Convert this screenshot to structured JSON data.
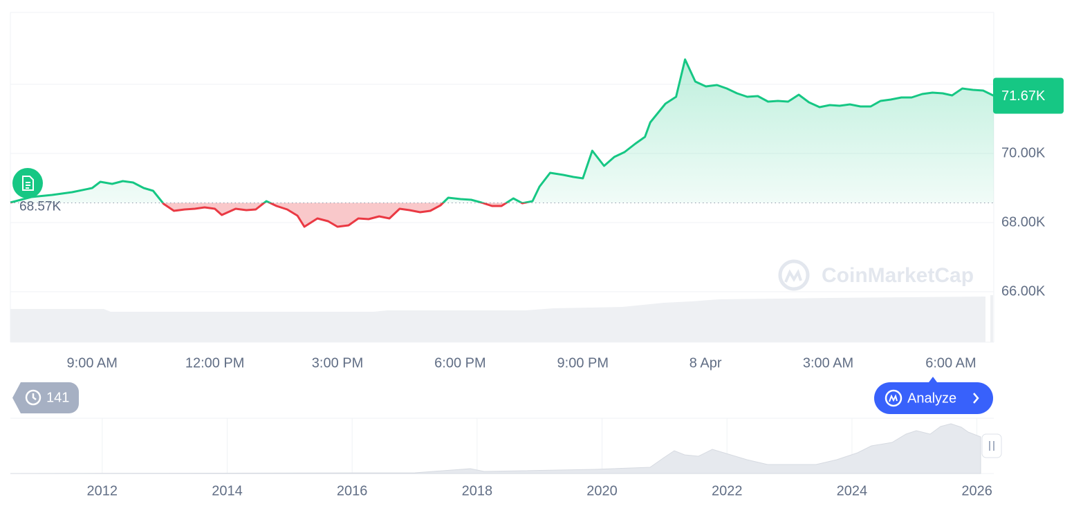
{
  "chart_data": {
    "type": "line",
    "x": [
      7,
      7.51,
      8.02,
      8.51,
      9,
      9.2,
      9.49,
      9.75,
      10,
      10.26,
      10.49,
      10.75,
      11,
      11.26,
      11.51,
      11.75,
      12,
      12.17,
      12.51,
      12.77,
      13,
      13.26,
      13.51,
      13.77,
      14.02,
      14.19,
      14.51,
      14.77,
      15,
      15.27,
      15.51,
      15.76,
      16.02,
      16.27,
      16.52,
      16.76,
      17.02,
      17.27,
      17.52,
      17.71,
      18.01,
      18.27,
      18.52,
      18.78,
      19.01,
      19.3,
      19.52,
      19.77,
      19.94,
      20.2,
      20.52,
      20.77,
      21,
      21.23,
      21.52,
      21.77,
      22.02,
      22.28,
      22.52,
      22.65,
      23.02,
      23.28,
      23.5,
      23.75,
      24.01,
      24.28,
      24.52,
      24.77,
      25.02,
      25.28,
      25.53,
      25.77,
      26.02,
      26.28,
      26.53,
      26.79,
      27.04,
      27.28,
      27.53,
      27.79,
      28.04,
      28.28,
      28.53,
      28.79,
      29.04,
      29.3,
      29.55,
      29.8,
      30.03,
      30.28,
      30.54,
      30.79,
      31.05
    ],
    "values": [
      68580,
      68740,
      68800,
      68880,
      69000,
      69180,
      69120,
      69200,
      69160,
      69000,
      68920,
      68540,
      68340,
      68380,
      68400,
      68440,
      68400,
      68220,
      68400,
      68360,
      68380,
      68620,
      68480,
      68380,
      68200,
      67880,
      68120,
      68040,
      67880,
      67920,
      68120,
      68100,
      68180,
      68120,
      68400,
      68360,
      68300,
      68340,
      68500,
      68720,
      68680,
      68660,
      68580,
      68480,
      68480,
      68700,
      68560,
      68620,
      69040,
      69440,
      69380,
      69320,
      69280,
      70080,
      69640,
      69900,
      70040,
      70280,
      70480,
      70900,
      71440,
      71640,
      72720,
      72080,
      71940,
      71980,
      71880,
      71740,
      71640,
      71660,
      71500,
      71520,
      71500,
      71700,
      71480,
      71340,
      71400,
      71380,
      71420,
      71360,
      71360,
      71520,
      71560,
      71620,
      71620,
      71720,
      71760,
      71740,
      71680,
      71880,
      71840,
      71820,
      71670
    ],
    "up_color": "#16c784",
    "down_color": "#ea3943",
    "xlim": [
      7,
      31.05
    ],
    "xticks": [
      {
        "value": 9,
        "label": "9:00 AM"
      },
      {
        "value": 12,
        "label": "12:00 PM"
      },
      {
        "value": 15,
        "label": "3:00 PM"
      },
      {
        "value": 18,
        "label": "6:00 PM"
      },
      {
        "value": 21,
        "label": "9:00 PM"
      },
      {
        "value": 24,
        "label": "8 Apr"
      },
      {
        "value": 27,
        "label": "3:00 AM"
      },
      {
        "value": 30,
        "label": "6:00 AM"
      }
    ],
    "ylim": [
      64540,
      74080
    ],
    "yticks": [
      {
        "value": 66000,
        "label": "66.00K"
      },
      {
        "value": 68000,
        "label": "68.00K"
      },
      {
        "value": 70000,
        "label": "70.00K"
      }
    ],
    "grid_values": [
      66000,
      68000,
      70000,
      72000
    ],
    "baseline": {
      "value": 68570,
      "label": "68.57K"
    },
    "last_price": {
      "value": 71670,
      "label": "71.67K"
    },
    "watermark": "CoinMarketCap",
    "history_count": "141",
    "analyze_button": "Analyze",
    "navigator": {
      "xlim": [
        2010.53,
        2026.27
      ],
      "xticks": [
        2012,
        2014,
        2016,
        2018,
        2020,
        2022,
        2024,
        2026
      ]
    }
  }
}
